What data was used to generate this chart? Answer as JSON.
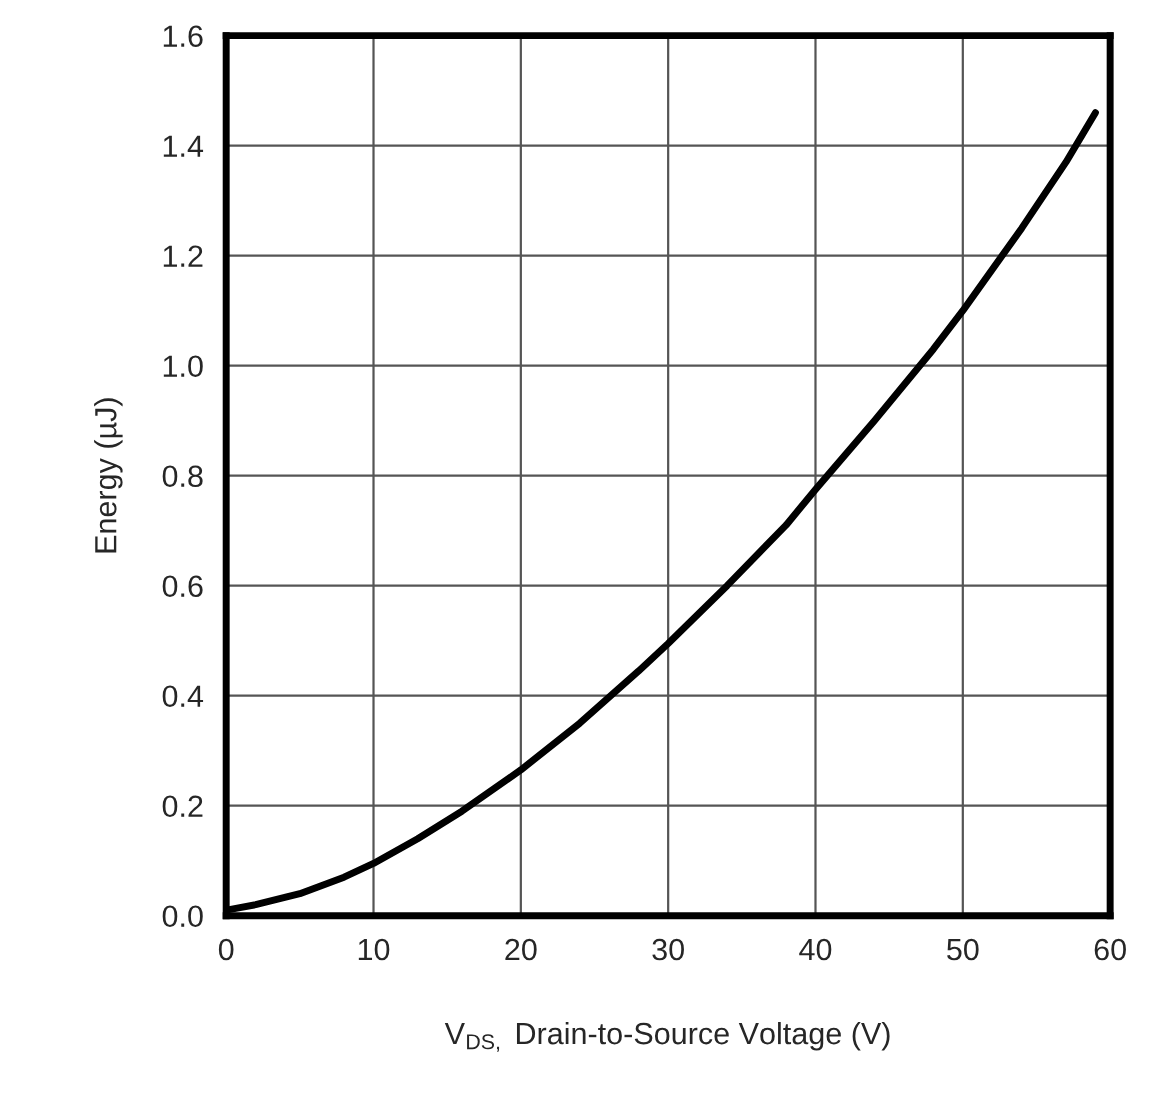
{
  "chart_data": {
    "type": "line",
    "xlabel": "V$_{DS,}$ Drain-to-Source Voltage (V)",
    "ylabel": "Energy (µJ)",
    "series": [
      {
        "color": "#000000",
        "x": [
          0,
          2,
          5,
          8,
          10,
          13,
          16,
          20,
          24,
          28,
          30,
          34,
          38,
          40,
          44,
          48,
          50,
          54,
          57,
          59
        ],
        "values": [
          0.01,
          0.02,
          0.04,
          0.07,
          0.095,
          0.14,
          0.19,
          0.265,
          0.35,
          0.445,
          0.495,
          0.6,
          0.71,
          0.775,
          0.9,
          1.03,
          1.1,
          1.25,
          1.37,
          1.46
        ]
      }
    ],
    "xlim": [
      0,
      60
    ],
    "ylim": [
      0,
      1.6
    ],
    "xticks": [
      0,
      10,
      20,
      30,
      40,
      50,
      60
    ],
    "yticks": [
      {
        "value": 0,
        "label": "0.0"
      },
      0.2,
      0.4,
      0.6,
      0.8,
      {
        "value": 1,
        "label": "1.0"
      },
      1.2,
      1.4,
      1.6
    ],
    "grid": true,
    "legend": false,
    "marker": "none",
    "line_style": "solid"
  }
}
